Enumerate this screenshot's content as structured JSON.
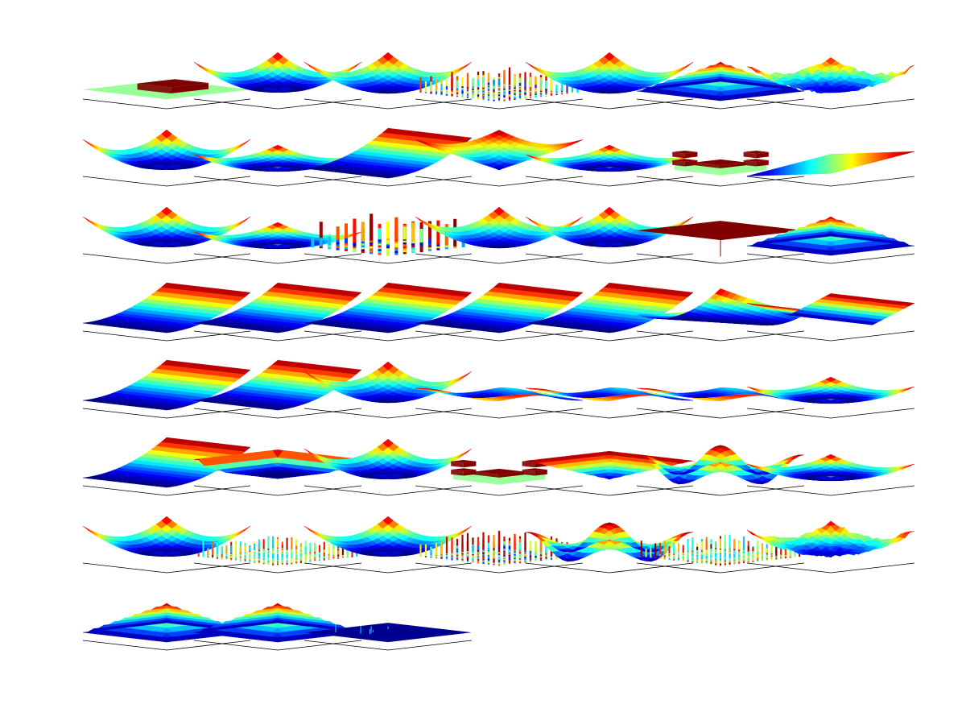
{
  "figure": {
    "background": "#ffffff",
    "colormap": "jet",
    "grid_rows": 8,
    "grid_cols": 7,
    "panel_count": 52
  },
  "chart_data": {
    "type": "surface-grid",
    "title": "",
    "axes_box_color": "#000000",
    "accent_colors": {
      "plateau_green": "#99ff99",
      "block_darkred": "#800000",
      "darkblue": "#000090"
    },
    "panels": [
      {
        "shape": "plateau"
      },
      {
        "shape": "bowl-peak"
      },
      {
        "shape": "bowl"
      },
      {
        "shape": "noise"
      },
      {
        "shape": "bowl"
      },
      {
        "shape": "pyramid"
      },
      {
        "shape": "noisy-bowl"
      },
      {
        "shape": "bowl-peak"
      },
      {
        "shape": "shallow-bowl"
      },
      {
        "shape": "ramp-ridge"
      },
      {
        "shape": "deep-bowl"
      },
      {
        "shape": "shallow-bowl"
      },
      {
        "shape": "cross-blocks"
      },
      {
        "shape": "plane"
      },
      {
        "shape": "bowl-peak"
      },
      {
        "shape": "shallow-bowl"
      },
      {
        "shape": "bars"
      },
      {
        "shape": "bowl"
      },
      {
        "shape": "bowl-peak"
      },
      {
        "shape": "flat-spike"
      },
      {
        "shape": "pyramid"
      },
      {
        "shape": "ramp-ridge"
      },
      {
        "shape": "ramp-ridge"
      },
      {
        "shape": "ramp-ridge"
      },
      {
        "shape": "ramp-ridge"
      },
      {
        "shape": "ramp-ridge"
      },
      {
        "shape": "curved-valley"
      },
      {
        "shape": "v-valley"
      },
      {
        "shape": "ramp-ridge"
      },
      {
        "shape": "ramp-ridge"
      },
      {
        "shape": "bowl"
      },
      {
        "shape": "wavy"
      },
      {
        "shape": "wavy"
      },
      {
        "shape": "wavy"
      },
      {
        "shape": "shallow-bowl"
      },
      {
        "shape": "ramp-ridge"
      },
      {
        "shape": "box-bowl"
      },
      {
        "shape": "bowl-peak"
      },
      {
        "shape": "cross-blocks"
      },
      {
        "shape": "inverted-pyramid"
      },
      {
        "shape": "egg-crate"
      },
      {
        "shape": "shallow-bowl"
      },
      {
        "shape": "bowl-peak"
      },
      {
        "shape": "ring-noise"
      },
      {
        "shape": "bowl-peak"
      },
      {
        "shape": "noise"
      },
      {
        "shape": "egg-crate"
      },
      {
        "shape": "ring-noise"
      },
      {
        "shape": "noisy-bowl"
      },
      {
        "shape": "pyramid"
      },
      {
        "shape": "pyramid"
      },
      {
        "shape": "flat-dark"
      }
    ]
  }
}
